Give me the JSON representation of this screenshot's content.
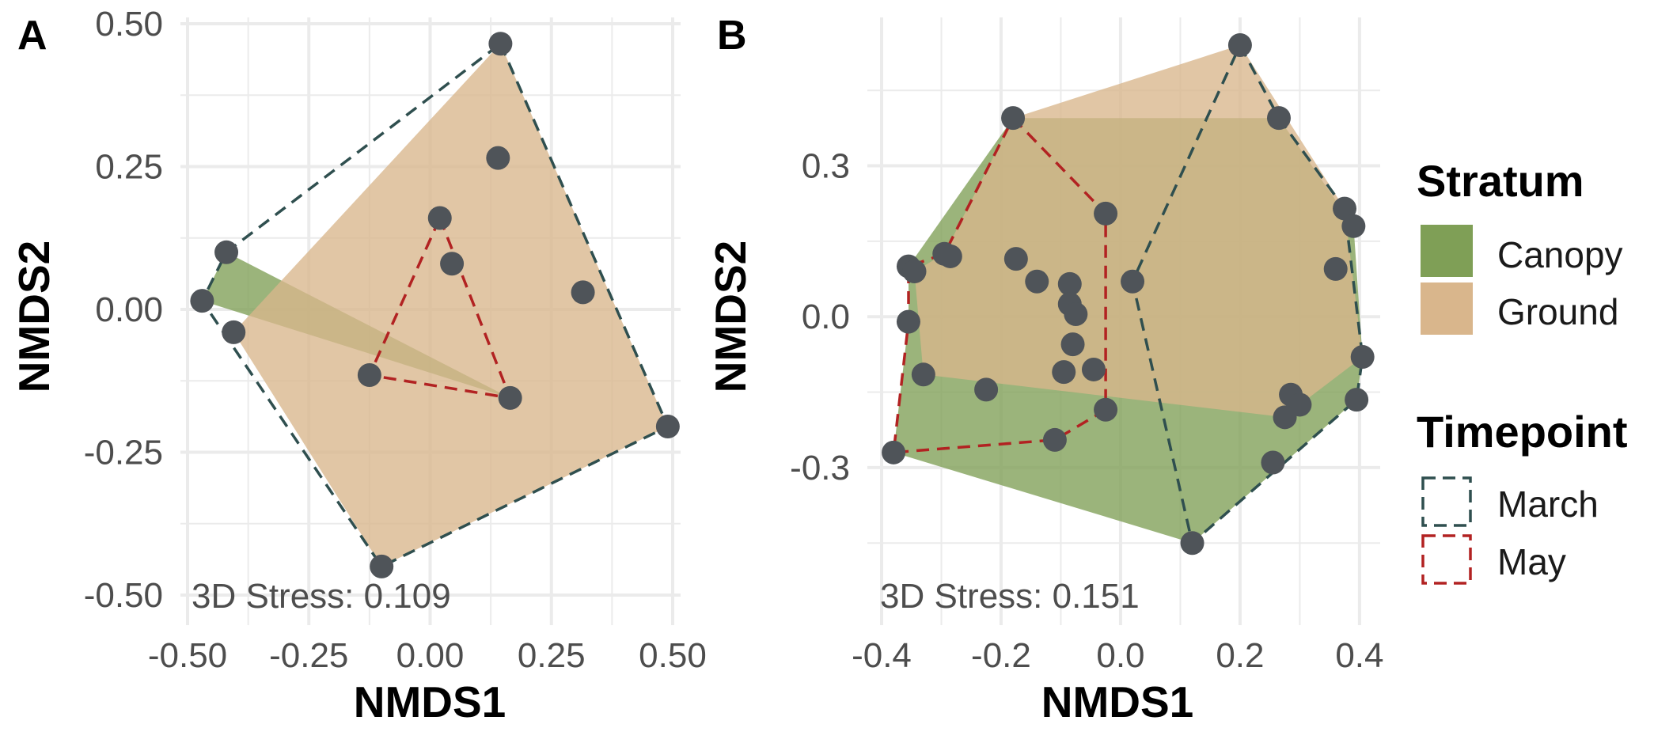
{
  "chart_data": [
    {
      "type": "scatter",
      "panel": "A",
      "xlabel": "NMDS1",
      "ylabel": "NMDS2",
      "xlim": [
        -0.5,
        0.5
      ],
      "ylim": [
        -0.5,
        0.5
      ],
      "x_ticks": [
        -0.5,
        -0.25,
        0.0,
        0.25,
        0.5
      ],
      "x_tick_labels": [
        "-0.50",
        "-0.25",
        "0.00",
        "0.25",
        "0.50"
      ],
      "y_ticks": [
        -0.5,
        -0.25,
        0.0,
        0.25,
        0.5
      ],
      "y_tick_labels": [
        "-0.50",
        "-0.25",
        "0.00",
        "0.25",
        "0.50"
      ],
      "grid": true,
      "annotation": "3D Stress: 0.109",
      "points": [
        {
          "x": 0.145,
          "y": 0.465
        },
        {
          "x": 0.14,
          "y": 0.265
        },
        {
          "x": 0.02,
          "y": 0.16
        },
        {
          "x": 0.045,
          "y": 0.08
        },
        {
          "x": 0.315,
          "y": 0.03
        },
        {
          "x": -0.42,
          "y": 0.1
        },
        {
          "x": -0.47,
          "y": 0.015
        },
        {
          "x": -0.405,
          "y": -0.04
        },
        {
          "x": -0.125,
          "y": -0.115
        },
        {
          "x": 0.165,
          "y": -0.155
        },
        {
          "x": 0.49,
          "y": -0.205
        },
        {
          "x": -0.1,
          "y": -0.45
        }
      ],
      "stratum_hulls": [
        {
          "name": "Canopy",
          "points": [
            [
              -0.47,
              0.015
            ],
            [
              -0.42,
              0.1
            ],
            [
              0.165,
              -0.155
            ]
          ]
        },
        {
          "name": "Ground",
          "points": [
            [
              0.145,
              0.465
            ],
            [
              0.49,
              -0.205
            ],
            [
              -0.1,
              -0.45
            ],
            [
              -0.405,
              -0.04
            ]
          ]
        }
      ],
      "timepoint_hulls": [
        {
          "name": "March",
          "points": [
            [
              0.145,
              0.465
            ],
            [
              0.49,
              -0.205
            ],
            [
              -0.1,
              -0.45
            ],
            [
              -0.47,
              0.015
            ],
            [
              -0.42,
              0.1
            ]
          ]
        },
        {
          "name": "May",
          "points": [
            [
              0.02,
              0.16
            ],
            [
              0.165,
              -0.155
            ],
            [
              -0.125,
              -0.115
            ]
          ]
        }
      ]
    },
    {
      "type": "scatter",
      "panel": "B",
      "xlabel": "NMDS1",
      "ylabel": "NMDS2",
      "xlim": [
        -0.4,
        0.42
      ],
      "ylim": [
        -0.5,
        0.54
      ],
      "x_ticks": [
        -0.4,
        -0.2,
        0.0,
        0.2,
        0.4
      ],
      "x_tick_labels": [
        "-0.4",
        "-0.2",
        "0.0",
        "0.2",
        "0.4"
      ],
      "y_ticks": [
        -0.3,
        0.0,
        0.3
      ],
      "y_tick_labels": [
        "-0.3",
        "0.0",
        "0.3"
      ],
      "grid": true,
      "annotation": "3D Stress: 0.151",
      "points": [
        {
          "x": 0.2,
          "y": 0.54
        },
        {
          "x": 0.265,
          "y": 0.395
        },
        {
          "x": -0.18,
          "y": 0.395
        },
        {
          "x": 0.375,
          "y": 0.215
        },
        {
          "x": 0.39,
          "y": 0.18
        },
        {
          "x": -0.025,
          "y": 0.205
        },
        {
          "x": -0.295,
          "y": 0.125
        },
        {
          "x": -0.285,
          "y": 0.12
        },
        {
          "x": -0.175,
          "y": 0.115
        },
        {
          "x": -0.355,
          "y": 0.1
        },
        {
          "x": -0.345,
          "y": 0.09
        },
        {
          "x": 0.36,
          "y": 0.095
        },
        {
          "x": -0.14,
          "y": 0.07
        },
        {
          "x": -0.085,
          "y": 0.065
        },
        {
          "x": 0.02,
          "y": 0.07
        },
        {
          "x": -0.085,
          "y": 0.025
        },
        {
          "x": -0.075,
          "y": 0.005
        },
        {
          "x": -0.355,
          "y": -0.01
        },
        {
          "x": -0.08,
          "y": -0.055
        },
        {
          "x": -0.33,
          "y": -0.115
        },
        {
          "x": -0.095,
          "y": -0.11
        },
        {
          "x": -0.045,
          "y": -0.105
        },
        {
          "x": 0.405,
          "y": -0.08
        },
        {
          "x": -0.225,
          "y": -0.145
        },
        {
          "x": 0.285,
          "y": -0.155
        },
        {
          "x": 0.3,
          "y": -0.175
        },
        {
          "x": 0.395,
          "y": -0.165
        },
        {
          "x": 0.275,
          "y": -0.2
        },
        {
          "x": -0.025,
          "y": -0.185
        },
        {
          "x": -0.11,
          "y": -0.245
        },
        {
          "x": -0.38,
          "y": -0.27
        },
        {
          "x": 0.255,
          "y": -0.29
        },
        {
          "x": 0.12,
          "y": -0.45
        }
      ],
      "stratum_hulls": [
        {
          "name": "Canopy",
          "points": [
            [
              -0.18,
              0.395
            ],
            [
              0.265,
              0.395
            ],
            [
              0.39,
              0.18
            ],
            [
              0.405,
              -0.08
            ],
            [
              0.395,
              -0.165
            ],
            [
              0.12,
              -0.45
            ],
            [
              -0.38,
              -0.27
            ],
            [
              -0.355,
              -0.01
            ],
            [
              -0.355,
              0.1
            ]
          ]
        },
        {
          "name": "Ground",
          "points": [
            [
              0.2,
              0.54
            ],
            [
              0.375,
              0.215
            ],
            [
              0.405,
              -0.08
            ],
            [
              0.3,
              -0.175
            ],
            [
              0.275,
              -0.2
            ],
            [
              -0.33,
              -0.115
            ],
            [
              -0.345,
              0.09
            ],
            [
              -0.295,
              0.125
            ],
            [
              -0.18,
              0.395
            ]
          ]
        }
      ],
      "timepoint_hulls": [
        {
          "name": "March",
          "points": [
            [
              0.2,
              0.54
            ],
            [
              0.265,
              0.395
            ],
            [
              0.375,
              0.215
            ],
            [
              0.405,
              -0.08
            ],
            [
              0.395,
              -0.165
            ],
            [
              0.12,
              -0.45
            ],
            [
              0.02,
              0.07
            ]
          ]
        },
        {
          "name": "May",
          "points": [
            [
              -0.18,
              0.395
            ],
            [
              -0.025,
              0.205
            ],
            [
              -0.025,
              -0.185
            ],
            [
              -0.11,
              -0.245
            ],
            [
              -0.38,
              -0.27
            ],
            [
              -0.355,
              -0.01
            ],
            [
              -0.355,
              0.1
            ],
            [
              -0.295,
              0.125
            ]
          ]
        }
      ]
    }
  ],
  "legend": {
    "placement": "right",
    "stratum": {
      "title": "Stratum",
      "items": [
        {
          "label": "Canopy",
          "color": "#7f9f56"
        },
        {
          "label": "Ground",
          "color": "#d9b68c"
        }
      ]
    },
    "timepoint": {
      "title": "Timepoint",
      "items": [
        {
          "label": "March",
          "color": "#2f4f4f"
        },
        {
          "label": "May",
          "color": "#b22222"
        }
      ]
    }
  },
  "colors": {
    "point": "#4f5459",
    "canopy_fill": "#7f9f56",
    "ground_fill": "#d9b68c",
    "march_line": "#2f4f4f",
    "may_line": "#b22222",
    "grid": "#ebebeb"
  }
}
